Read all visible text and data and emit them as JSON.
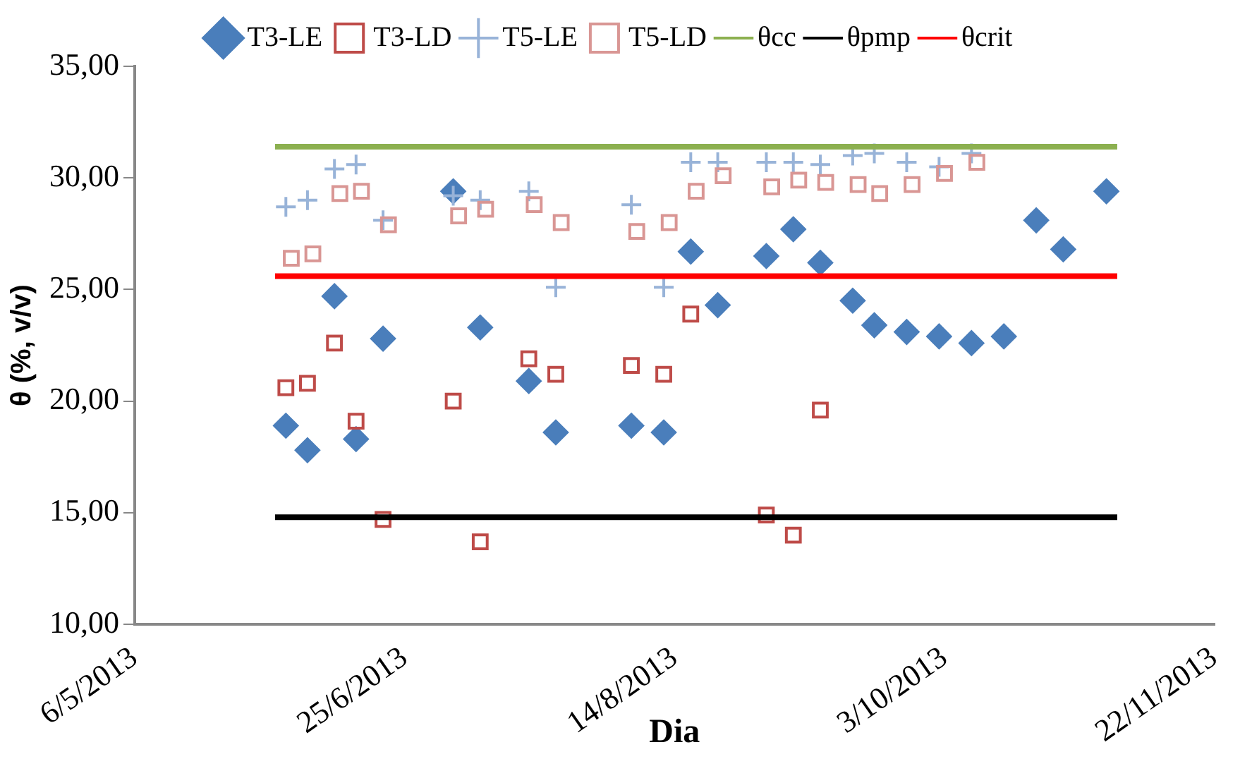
{
  "chart_data": {
    "type": "scatter",
    "xlabel": "Dia",
    "ylabel": "θ (%, v/v)",
    "legend": "top",
    "grid": false,
    "xlim": [
      "2013-05-06",
      "2013-11-22"
    ],
    "xticks": [
      {
        "value": "2013-05-06",
        "label": "6/5/2013"
      },
      {
        "value": "2013-06-25",
        "label": "25/6/2013"
      },
      {
        "value": "2013-08-14",
        "label": "14/8/2013"
      },
      {
        "value": "2013-10-03",
        "label": "3/10/2013"
      },
      {
        "value": "2013-11-22",
        "label": "22/11/2013"
      }
    ],
    "ylim": [
      10,
      35
    ],
    "yticks": [
      {
        "value": 10,
        "label": "10,00"
      },
      {
        "value": 15,
        "label": "15,00"
      },
      {
        "value": 20,
        "label": "20,00"
      },
      {
        "value": 25,
        "label": "25,00"
      },
      {
        "value": 30,
        "label": "30,00"
      },
      {
        "value": 35,
        "label": "35,00"
      }
    ],
    "series": [
      {
        "name": "T3-LE",
        "color": "#4a7ebb",
        "marker": "diamond",
        "x": [
          "2013-06-03",
          "2013-06-07",
          "2013-06-12",
          "2013-06-16",
          "2013-06-21",
          "2013-07-04",
          "2013-07-09",
          "2013-07-18",
          "2013-07-23",
          "2013-08-06",
          "2013-08-12",
          "2013-08-17",
          "2013-08-22",
          "2013-08-31",
          "2013-09-05",
          "2013-09-10",
          "2013-09-16",
          "2013-09-20",
          "2013-09-26",
          "2013-10-02",
          "2013-10-08",
          "2013-10-14",
          "2013-10-20",
          "2013-10-25",
          "2013-11-02"
        ],
        "values": [
          18.9,
          17.8,
          24.7,
          18.3,
          22.8,
          29.4,
          23.3,
          20.9,
          18.6,
          18.9,
          18.6,
          26.7,
          24.3,
          26.5,
          27.7,
          26.2,
          24.5,
          23.4,
          23.1,
          22.9,
          22.6,
          22.9,
          28.1,
          26.8,
          29.4
        ]
      },
      {
        "name": "T3-LD",
        "color": "#be4b48",
        "marker": "square",
        "x": [
          "2013-06-03",
          "2013-06-07",
          "2013-06-12",
          "2013-06-16",
          "2013-06-21",
          "2013-07-04",
          "2013-07-09",
          "2013-07-18",
          "2013-07-23",
          "2013-08-06",
          "2013-08-12",
          "2013-08-17",
          "2013-08-31",
          "2013-09-05",
          "2013-09-10"
        ],
        "values": [
          20.6,
          20.8,
          22.6,
          19.1,
          14.7,
          20.0,
          13.7,
          21.9,
          21.2,
          21.6,
          21.2,
          23.9,
          14.9,
          14.0,
          19.6
        ]
      },
      {
        "name": "T5-LE",
        "color": "#98b3d8",
        "marker": "cross",
        "x": [
          "2013-06-03",
          "2013-06-07",
          "2013-06-12",
          "2013-06-16",
          "2013-06-21",
          "2013-07-04",
          "2013-07-09",
          "2013-07-18",
          "2013-07-23",
          "2013-08-06",
          "2013-08-12",
          "2013-08-17",
          "2013-08-22",
          "2013-08-31",
          "2013-09-05",
          "2013-09-10",
          "2013-09-16",
          "2013-09-20",
          "2013-09-26",
          "2013-10-02",
          "2013-10-08"
        ],
        "values": [
          28.7,
          29.0,
          30.4,
          30.6,
          28.1,
          29.2,
          29.0,
          29.4,
          25.1,
          28.8,
          25.1,
          30.7,
          30.7,
          30.7,
          30.7,
          30.6,
          31.0,
          31.1,
          30.7,
          30.5,
          31.1
        ]
      },
      {
        "name": "T5-LD",
        "color": "#d99694",
        "marker": "square",
        "x": [
          "2013-06-04",
          "2013-06-08",
          "2013-06-13",
          "2013-06-17",
          "2013-06-22",
          "2013-07-05",
          "2013-07-10",
          "2013-07-19",
          "2013-07-24",
          "2013-08-07",
          "2013-08-13",
          "2013-08-18",
          "2013-08-23",
          "2013-09-01",
          "2013-09-06",
          "2013-09-11",
          "2013-09-17",
          "2013-09-21",
          "2013-09-27",
          "2013-10-03",
          "2013-10-09"
        ],
        "values": [
          26.4,
          26.6,
          29.3,
          29.4,
          27.9,
          28.3,
          28.6,
          28.8,
          28.0,
          27.6,
          28.0,
          29.4,
          30.1,
          29.6,
          29.9,
          29.8,
          29.7,
          29.3,
          29.7,
          30.2,
          30.7
        ]
      },
      {
        "name": "θcc",
        "type": "line",
        "color": "#8cb050",
        "marker": "none",
        "x": [
          "2013-06-01",
          "2013-11-04"
        ],
        "values": [
          31.4,
          31.4
        ]
      },
      {
        "name": "θpmp",
        "type": "line",
        "color": "#000000",
        "marker": "none",
        "x": [
          "2013-06-01",
          "2013-11-04"
        ],
        "values": [
          14.8,
          14.8
        ]
      },
      {
        "name": "θcrit",
        "type": "line",
        "color": "#ff0000",
        "marker": "none",
        "x": [
          "2013-06-01",
          "2013-11-04"
        ],
        "values": [
          25.6,
          25.6
        ]
      }
    ]
  }
}
